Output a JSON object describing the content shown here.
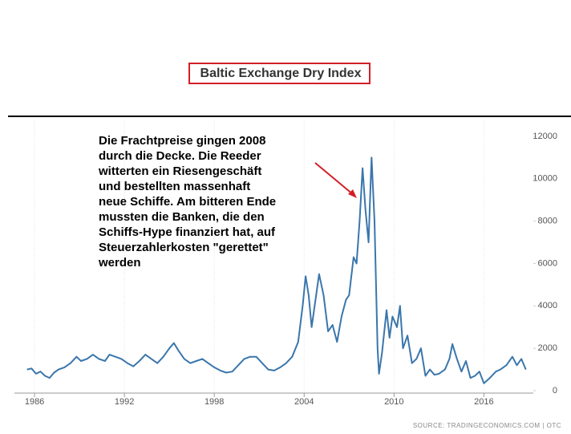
{
  "chart_data": {
    "type": "line",
    "title": "Baltic Exchange Dry Index",
    "annotation": [
      "Die Frachtpreise gingen 2008",
      "durch die Decke. Die Reeder",
      "witterten ein Riesengeschäft",
      "und bestellten massenhaft",
      "neue Schiffe. Am bitteren Ende",
      "mussten die Banken, die den",
      "Schiffs-Hype finanziert hat, auf",
      "Steuerzahlerkosten \"gerettet\"",
      "werden"
    ],
    "source": "SOURCE: TRADINGECONOMICS.COM | OTC",
    "color": "#3a76ac",
    "x": [
      1985.5,
      1985.8,
      1986.1,
      1986.4,
      1986.7,
      1987.0,
      1987.3,
      1987.6,
      1988.0,
      1988.4,
      1988.8,
      1989.1,
      1989.5,
      1989.9,
      1990.3,
      1990.7,
      1991.0,
      1991.4,
      1991.8,
      1992.2,
      1992.6,
      1993.0,
      1993.4,
      1993.8,
      1994.2,
      1994.6,
      1995.0,
      1995.3,
      1995.6,
      1996.0,
      1996.4,
      1996.8,
      1997.2,
      1997.6,
      1998.0,
      1998.4,
      1998.8,
      1999.2,
      1999.6,
      2000.0,
      2000.4,
      2000.8,
      2001.2,
      2001.6,
      2002.0,
      2002.4,
      2002.8,
      2003.2,
      2003.6,
      2003.9,
      2004.1,
      2004.3,
      2004.5,
      2004.8,
      2005.0,
      2005.3,
      2005.6,
      2005.9,
      2006.2,
      2006.5,
      2006.8,
      2007.0,
      2007.3,
      2007.5,
      2007.7,
      2007.9,
      2008.1,
      2008.3,
      2008.4,
      2008.5,
      2008.7,
      2008.9,
      2009.0,
      2009.2,
      2009.5,
      2009.7,
      2009.9,
      2010.2,
      2010.4,
      2010.6,
      2010.9,
      2011.2,
      2011.5,
      2011.8,
      2012.1,
      2012.4,
      2012.7,
      2013.0,
      2013.4,
      2013.7,
      2013.9,
      2014.2,
      2014.5,
      2014.8,
      2015.1,
      2015.4,
      2015.7,
      2016.0,
      2016.4,
      2016.8,
      2017.1,
      2017.5,
      2017.9,
      2018.2,
      2018.5,
      2018.8
    ],
    "values": [
      1000,
      1050,
      800,
      900,
      700,
      600,
      850,
      1000,
      1100,
      1300,
      1600,
      1400,
      1500,
      1700,
      1500,
      1400,
      1700,
      1600,
      1500,
      1300,
      1150,
      1400,
      1700,
      1500,
      1300,
      1600,
      2000,
      2250,
      1900,
      1500,
      1300,
      1400,
      1500,
      1300,
      1100,
      950,
      850,
      900,
      1200,
      1500,
      1600,
      1600,
      1300,
      1000,
      950,
      1100,
      1300,
      1600,
      2300,
      4000,
      5400,
      4500,
      3000,
      4500,
      5500,
      4500,
      2800,
      3100,
      2300,
      3500,
      4300,
      4500,
      6300,
      6000,
      8000,
      10500,
      8500,
      7000,
      9000,
      11000,
      8000,
      2000,
      800,
      1800,
      3800,
      2500,
      3500,
      3000,
      4000,
      2000,
      2600,
      1300,
      1500,
      2000,
      700,
      1000,
      750,
      800,
      1000,
      1500,
      2200,
      1500,
      900,
      1400,
      600,
      700,
      900,
      350,
      600,
      900,
      1000,
      1200,
      1600,
      1200,
      1500,
      1000
    ],
    "xlim": [
      1985.3,
      2019.3
    ],
    "xticks": [
      1986,
      1992,
      1998,
      2004,
      2010,
      2016
    ],
    "ylim": [
      0,
      12000
    ],
    "yticks": [
      0,
      2000,
      4000,
      6000,
      8000,
      10000,
      12000
    ],
    "grid": true
  }
}
